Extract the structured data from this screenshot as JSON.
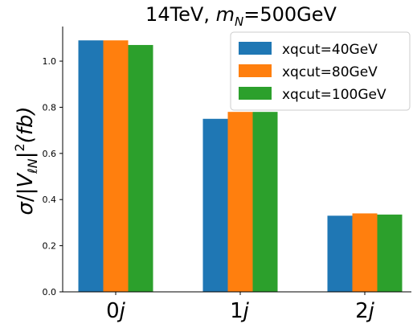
{
  "chart_data": {
    "type": "bar",
    "title": "14TeV, m_N=500GeV",
    "title_parts": {
      "prefix": "14TeV, ",
      "var_main": "m",
      "var_sub": "N",
      "suffix": "=500GeV"
    },
    "xlabel": "",
    "ylabel": "σ/|V_ℓN|²(fb)",
    "ylabel_parts": {
      "sigma": "σ",
      "slash": "/|",
      "v": "V",
      "sub": "ℓN",
      "close": "|",
      "sup": "2",
      "unit": "(fb)"
    },
    "categories": [
      {
        "num": "0",
        "var": "j"
      },
      {
        "num": "1",
        "var": "j"
      },
      {
        "num": "2",
        "var": "j"
      }
    ],
    "series": [
      {
        "name": "xqcut=40GeV",
        "color": "#1f77b4",
        "values": [
          1.09,
          0.75,
          0.33
        ]
      },
      {
        "name": "xqcut=80GeV",
        "color": "#ff7f0e",
        "values": [
          1.09,
          0.78,
          0.34
        ]
      },
      {
        "name": "xqcut=100GeV",
        "color": "#2ca02c",
        "values": [
          1.07,
          0.78,
          0.335
        ]
      }
    ],
    "yticks": [
      "0.0",
      "0.2",
      "0.4",
      "0.6",
      "0.8",
      "1.0"
    ],
    "ylim": [
      0,
      1.15
    ],
    "legend_position": "top-right",
    "grid": false
  }
}
